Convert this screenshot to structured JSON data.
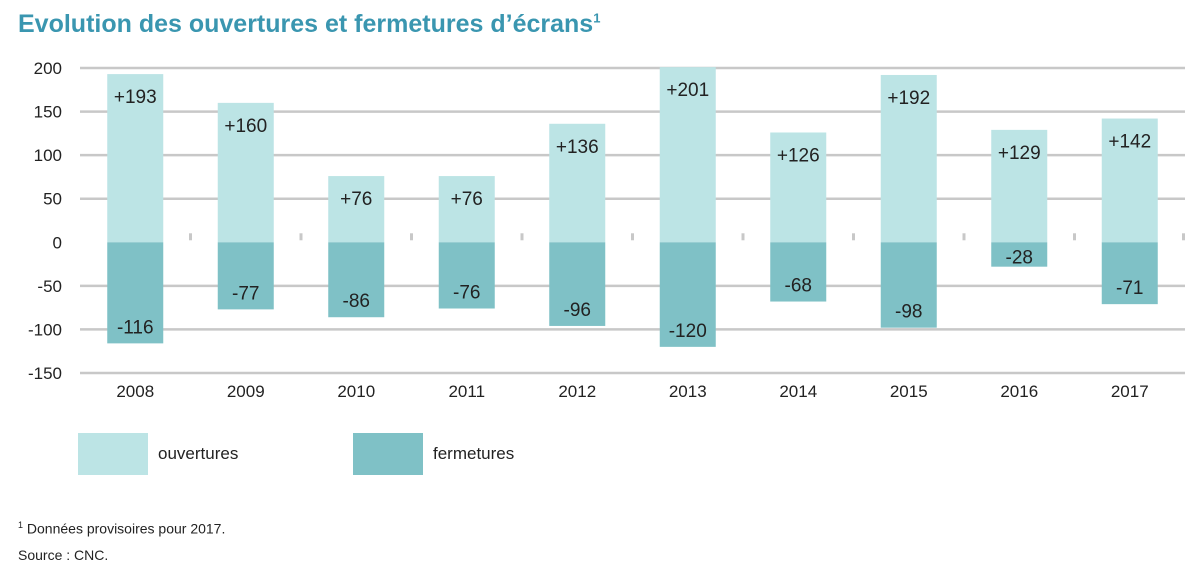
{
  "title": "Evolution des ouvertures et fermetures d’écrans",
  "title_note_marker": "1",
  "colors": {
    "ouvertures": "#bce4e5",
    "fermetures": "#7fc1c6",
    "title": "#3a96b0"
  },
  "chart_data": {
    "type": "bar",
    "categories": [
      "2008",
      "2009",
      "2010",
      "2011",
      "2012",
      "2013",
      "2014",
      "2015",
      "2016",
      "2017"
    ],
    "series": [
      {
        "name": "ouvertures",
        "values": [
          193,
          160,
          76,
          76,
          136,
          201,
          126,
          192,
          129,
          142
        ],
        "labels": [
          "+193",
          "+160",
          "+76",
          "+76",
          "+136",
          "+201",
          "+126",
          "+192",
          "+129",
          "+142"
        ]
      },
      {
        "name": "fermetures",
        "values": [
          -116,
          -77,
          -86,
          -76,
          -96,
          -120,
          -68,
          -98,
          -28,
          -71
        ],
        "labels": [
          "-116",
          "-77",
          "-86",
          "-76",
          "-96",
          "-120",
          "-68",
          "-98",
          "-28",
          "-71"
        ]
      }
    ],
    "ylim": [
      -150,
      200
    ],
    "yticks": [
      200,
      150,
      100,
      50,
      0,
      -50,
      -100,
      -150
    ],
    "ytick_labels": [
      "200",
      "150",
      "100",
      "50",
      "0",
      "-50",
      "-100",
      "-150"
    ],
    "grid": true,
    "stacked": true,
    "legend_position": "bottom-left"
  },
  "legend": {
    "ouvertures": "ouvertures",
    "fermetures": "fermetures"
  },
  "footnote": {
    "marker": "1",
    "text": "Données provisoires pour 2017."
  },
  "source": "Source : CNC."
}
